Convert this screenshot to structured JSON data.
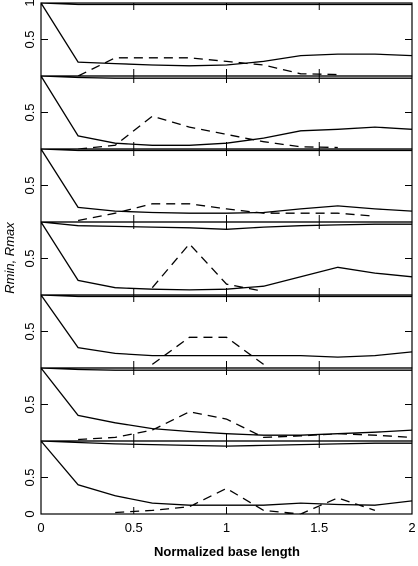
{
  "chart_data": {
    "type": "line",
    "xlabel": "Normalized base length",
    "ylabel": "Rmin, Rmax",
    "x": [
      0,
      0.2,
      0.4,
      0.6,
      0.8,
      1.0,
      1.2,
      1.4,
      1.6,
      1.8,
      2.0
    ],
    "xlim": [
      0,
      2
    ],
    "xticks": [
      0,
      0.5,
      1,
      1.5,
      2
    ],
    "panels": [
      {
        "ylim": [
          0,
          1
        ],
        "yticks": [
          0.5,
          1
        ],
        "series": [
          {
            "color": "#000",
            "values": [
              1,
              0.98,
              0.98,
              0.98,
              0.98,
              0.98,
              0.98,
              0.98,
              0.98,
              0.98,
              0.98
            ]
          },
          {
            "color": "#000",
            "values": [
              1,
              0.19,
              0.17,
              0.15,
              0.14,
              0.15,
              0.2,
              0.28,
              0.3,
              0.3,
              0.28
            ]
          },
          {
            "color": "#000",
            "dashed": true,
            "values": [
              null,
              0,
              0.25,
              0.25,
              0.25,
              0.2,
              0.15,
              0.03,
              0.02,
              null,
              null
            ]
          }
        ]
      },
      {
        "ylim": [
          0,
          1
        ],
        "yticks": [
          0.5
        ],
        "series": [
          {
            "color": "#000",
            "values": [
              1,
              0.98,
              0.97,
              0.97,
              0.97,
              0.97,
              0.97,
              0.97,
              0.97,
              0.97,
              0.97
            ]
          },
          {
            "color": "#000",
            "values": [
              1,
              0.18,
              0.08,
              0.05,
              0.05,
              0.08,
              0.15,
              0.25,
              0.27,
              0.3,
              0.27
            ]
          },
          {
            "color": "#000",
            "dashed": true,
            "values": [
              null,
              0,
              0.05,
              0.45,
              0.3,
              0.2,
              0.1,
              0.03,
              0.02,
              null,
              null
            ]
          }
        ]
      },
      {
        "ylim": [
          0,
          1
        ],
        "yticks": [
          0.5
        ],
        "series": [
          {
            "color": "#000",
            "values": [
              1,
              0.98,
              0.98,
              0.98,
              0.98,
              0.98,
              0.98,
              0.98,
              0.98,
              0.98,
              0.98
            ]
          },
          {
            "color": "#000",
            "values": [
              1,
              0.2,
              0.15,
              0.13,
              0.12,
              0.12,
              0.13,
              0.18,
              0.22,
              0.18,
              0.15
            ]
          },
          {
            "color": "#000",
            "dashed": true,
            "values": [
              null,
              0.02,
              0.12,
              0.25,
              0.25,
              0.18,
              0.12,
              0.12,
              0.12,
              0.08,
              null
            ]
          }
        ]
      },
      {
        "ylim": [
          0,
          1
        ],
        "yticks": [
          0.5
        ],
        "series": [
          {
            "color": "#000",
            "values": [
              1,
              0.95,
              0.94,
              0.93,
              0.92,
              0.9,
              0.93,
              0.95,
              0.96,
              0.97,
              0.97
            ]
          },
          {
            "color": "#000",
            "values": [
              1,
              0.2,
              0.1,
              0.08,
              0.07,
              0.08,
              0.12,
              0.25,
              0.38,
              0.3,
              0.25
            ]
          },
          {
            "color": "#000",
            "dashed": true,
            "values": [
              null,
              null,
              null,
              0.1,
              0.7,
              0.15,
              0.05,
              null,
              null,
              null,
              null
            ]
          }
        ]
      },
      {
        "ylim": [
          0,
          1
        ],
        "yticks": [
          0.5
        ],
        "series": [
          {
            "color": "#000",
            "values": [
              1,
              0.98,
              0.98,
              0.98,
              0.98,
              0.98,
              0.98,
              0.98,
              0.98,
              0.98,
              0.98
            ]
          },
          {
            "color": "#000",
            "values": [
              1,
              0.28,
              0.2,
              0.17,
              0.17,
              0.17,
              0.17,
              0.17,
              0.15,
              0.17,
              0.22
            ]
          },
          {
            "color": "#000",
            "dashed": true,
            "values": [
              null,
              null,
              null,
              0.05,
              0.42,
              0.42,
              0.05,
              null,
              null,
              null,
              null
            ]
          }
        ]
      },
      {
        "ylim": [
          0,
          1
        ],
        "yticks": [
          0.5
        ],
        "series": [
          {
            "color": "#000",
            "values": [
              1,
              0.98,
              0.97,
              0.97,
              0.97,
              0.97,
              0.97,
              0.97,
              0.97,
              0.97,
              0.97
            ]
          },
          {
            "color": "#000",
            "values": [
              1,
              0.35,
              0.25,
              0.17,
              0.13,
              0.1,
              0.08,
              0.08,
              0.1,
              0.12,
              0.15
            ]
          },
          {
            "color": "#000",
            "dashed": true,
            "values": [
              null,
              0.02,
              0.05,
              0.15,
              0.4,
              0.3,
              0.05,
              0.07,
              0.1,
              0.08,
              0.05
            ]
          }
        ]
      },
      {
        "ylim": [
          0,
          1
        ],
        "yticks": [
          0,
          0.5
        ],
        "series": [
          {
            "color": "#000",
            "values": [
              1,
              0.98,
              0.96,
              0.95,
              0.94,
              0.93,
              0.94,
              0.95,
              0.96,
              0.97,
              0.97
            ]
          },
          {
            "color": "#000",
            "values": [
              1,
              0.4,
              0.25,
              0.15,
              0.12,
              0.12,
              0.12,
              0.15,
              0.13,
              0.12,
              0.18
            ]
          },
          {
            "color": "#000",
            "dashed": true,
            "values": [
              null,
              null,
              0.02,
              0.05,
              0.1,
              0.35,
              0.05,
              0,
              0.22,
              0.05,
              null
            ]
          }
        ]
      }
    ]
  }
}
